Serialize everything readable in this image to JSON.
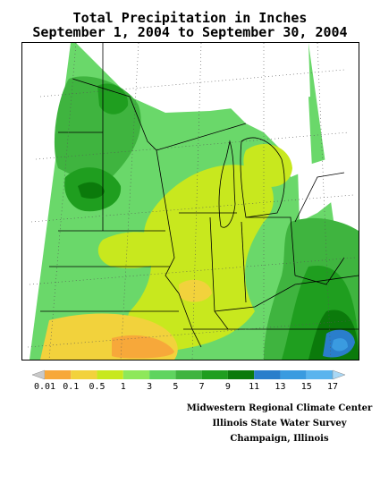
{
  "title_line1": "Total Precipitation in Inches",
  "title_line2": "September 1, 2004 to September 30, 2004",
  "legend": {
    "tick_labels": [
      "0.01",
      "0.1",
      "0.5",
      "1",
      "3",
      "5",
      "7",
      "9",
      "11",
      "13",
      "15",
      "17"
    ],
    "colors": [
      "#c9c9c9",
      "#f7a83a",
      "#f2d23c",
      "#c8e81e",
      "#8ee85a",
      "#5fd45f",
      "#3fb43f",
      "#1f9e1f",
      "#0b7a0b",
      "#2a7ecb",
      "#3a9be0",
      "#5ab4ee",
      "#a9d8f6"
    ]
  },
  "credits": {
    "line1": "Midwestern Regional Climate Center",
    "line2": "Illinois State Water Survey",
    "line3": "Champaign, Illinois"
  }
}
